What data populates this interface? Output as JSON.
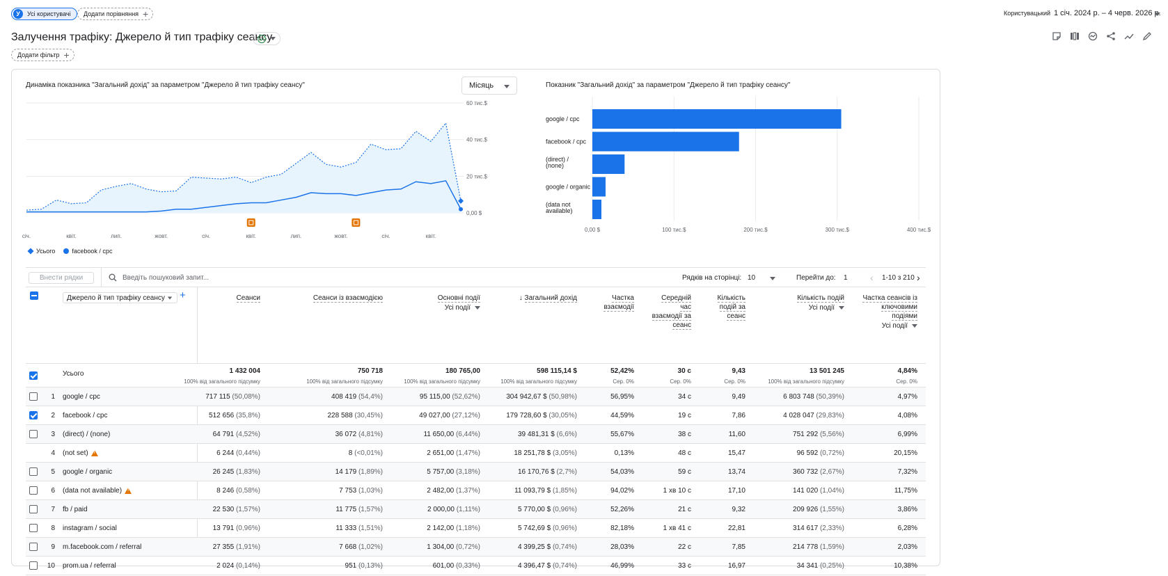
{
  "colors": {
    "accent": "#1a73e8",
    "area": "#e8f4fd",
    "annotation": "#e37400",
    "ok": "#188038"
  },
  "segment": {
    "avatar_letter": "У",
    "label": "Усі користувачі"
  },
  "compare": {
    "label": "Додати порівняння"
  },
  "date": {
    "label": "Користувацький",
    "range": "1 січ. 2024 р. – 4 черв. 2026 р."
  },
  "page_title": "Залучення трафіку: Джерело й тип трафіку сеансу",
  "filter": {
    "label": "Додати фільтр"
  },
  "toolbar_icons": [
    "note-icon",
    "compare-columns-icon",
    "insights-icon",
    "share-icon",
    "trend-icon",
    "edit-icon"
  ],
  "line_chart": {
    "title": "Динаміка показника \"Загальний дохід\" за параметром \"Джерело й тип трафіку сеансу\"",
    "granularity": "Місяць",
    "y_ticks": [
      "60 тис.$",
      "40 тис.$",
      "20 тис.$",
      "0,00 $"
    ],
    "x_ticks": [
      "січ.",
      "квіт.",
      "лип.",
      "жовт.",
      "січ.",
      "квіт.",
      "лип.",
      "жовт.",
      "січ.",
      "квіт."
    ],
    "legend": {
      "total": "Усього",
      "series": "facebook / cpc"
    }
  },
  "chart_data": [
    {
      "type": "line",
      "x": [
        "2024-01",
        "2024-02",
        "2024-03",
        "2024-04",
        "2024-05",
        "2024-06",
        "2024-07",
        "2024-08",
        "2024-09",
        "2024-10",
        "2024-11",
        "2024-12",
        "2025-01",
        "2025-02",
        "2025-03",
        "2025-04",
        "2025-05",
        "2025-06",
        "2025-07",
        "2025-08",
        "2025-09",
        "2025-10",
        "2025-11",
        "2025-12",
        "2026-01",
        "2026-02",
        "2026-03",
        "2026-04",
        "2026-05",
        "2026-06"
      ],
      "series": [
        {
          "name": "Усього",
          "values": [
            1500,
            2000,
            7000,
            5000,
            5500,
            12500,
            14500,
            16000,
            13000,
            11500,
            12000,
            19500,
            19000,
            18500,
            19500,
            16500,
            19500,
            21000,
            27000,
            33000,
            26500,
            25000,
            27500,
            37500,
            34500,
            35000,
            44500,
            39000,
            49000,
            6500
          ]
        },
        {
          "name": "facebook / cpc",
          "values": [
            500,
            500,
            500,
            500,
            500,
            500,
            500,
            500,
            500,
            1000,
            2000,
            2000,
            3000,
            4000,
            5000,
            5500,
            5500,
            7000,
            8500,
            11000,
            10500,
            10500,
            9500,
            11000,
            12500,
            13000,
            17000,
            16000,
            17500,
            2000
          ]
        }
      ],
      "ylim": [
        0,
        60000
      ],
      "y_ticks": [
        "60 тис.$",
        "40 тис.$",
        "20 тис.$",
        "0,00 $"
      ],
      "x_ticks": [
        "січ.",
        "квіт.",
        "лип.",
        "жовт.",
        "січ.",
        "квіт.",
        "лип.",
        "жовт.",
        "січ.",
        "квіт."
      ],
      "annotations": [
        "2025-04",
        "2025-11"
      ],
      "grid": true,
      "legend": "bottom-left"
    },
    {
      "type": "bar",
      "title": "Показник \"Загальний дохід\" за параметром \"Джерело й тип трафіку сеансу\"",
      "categories": [
        "google / cpc",
        "facebook / cpc",
        "(direct) / (none)",
        "google / organic",
        "(data not available)"
      ],
      "values": [
        304942.67,
        179728.6,
        39481.31,
        16170.76,
        11093.79
      ],
      "xlim": [
        0,
        400000
      ],
      "x_ticks": [
        "0,00 $",
        "100 тис.$",
        "200 тис.$",
        "300 тис.$",
        "400 тис.$"
      ],
      "grid": true
    }
  ],
  "bar_chart": {
    "title": "Показник \"Загальний дохід\" за параметром \"Джерело й тип трафіку сеансу\""
  },
  "table": {
    "insert_rows": "Внести рядки",
    "search_placeholder": "Введіть пошуковий запит...",
    "rows_per_page_label": "Рядків на сторінці:",
    "rows_per_page": "10",
    "goto_label": "Перейти до:",
    "goto_value": "1",
    "range": "1-10 з 210",
    "dimension": "Джерело й тип трафіку сеансу",
    "columns": [
      {
        "label": "Сеанси"
      },
      {
        "label": "Сеанси із взаємодією"
      },
      {
        "label": "Основні події",
        "sub": "Усі події"
      },
      {
        "label": "Загальний дохід",
        "sorted": "desc"
      },
      {
        "label": "Частка взаємодії"
      },
      {
        "label": "Середній час взаємодії за сеанс"
      },
      {
        "label": "Кількість подій за сеанс"
      },
      {
        "label": "Кількість подій",
        "sub": "Усі події"
      },
      {
        "label": "Частка сеансів із ключовими подіями",
        "sub": "Усі події"
      }
    ],
    "totals_label": "Усього",
    "totals": [
      {
        "v": "1 432 004",
        "p": "100% від загального підсумку"
      },
      {
        "v": "750 718",
        "p": "100% від загального підсумку"
      },
      {
        "v": "180 765,00",
        "p": "100% від загального підсумку"
      },
      {
        "v": "598 115,14 $",
        "p": "100% від загального підсумку"
      },
      {
        "v": "52,42%",
        "p": "Сер. 0%"
      },
      {
        "v": "30 с",
        "p": "Сер. 0%"
      },
      {
        "v": "9,43",
        "p": "Сер. 0%"
      },
      {
        "v": "13 501 245",
        "p": "100% від загального підсумку"
      },
      {
        "v": "4,84%",
        "p": "Сер. 0%"
      }
    ],
    "rows": [
      {
        "idx": "1",
        "dim": "google / cpc",
        "checked": false,
        "c": [
          [
            "717 115",
            "(50,08%)"
          ],
          [
            "408 419",
            "(54,4%)"
          ],
          [
            "95 115,00",
            "(52,62%)"
          ],
          [
            "304 942,67 $",
            "(50,98%)"
          ],
          [
            "56,95%",
            ""
          ],
          [
            "34 с",
            ""
          ],
          [
            "9,49",
            ""
          ],
          [
            "6 803 748",
            "(50,39%)"
          ],
          [
            "4,97%",
            ""
          ]
        ]
      },
      {
        "idx": "2",
        "dim": "facebook / cpc",
        "checked": true,
        "c": [
          [
            "512 656",
            "(35,8%)"
          ],
          [
            "228 588",
            "(30,45%)"
          ],
          [
            "49 027,00",
            "(27,12%)"
          ],
          [
            "179 728,60 $",
            "(30,05%)"
          ],
          [
            "44,59%",
            ""
          ],
          [
            "19 с",
            ""
          ],
          [
            "7,86",
            ""
          ],
          [
            "4 028 047",
            "(29,83%)"
          ],
          [
            "4,08%",
            ""
          ]
        ]
      },
      {
        "idx": "3",
        "dim": "(direct) / (none)",
        "checked": false,
        "c": [
          [
            "64 791",
            "(4,52%)"
          ],
          [
            "36 072",
            "(4,81%)"
          ],
          [
            "11 650,00",
            "(6,44%)"
          ],
          [
            "39 481,31 $",
            "(6,6%)"
          ],
          [
            "55,67%",
            ""
          ],
          [
            "38 с",
            ""
          ],
          [
            "11,60",
            ""
          ],
          [
            "751 292",
            "(5,56%)"
          ],
          [
            "6,99%",
            ""
          ]
        ]
      },
      {
        "idx": "4",
        "dim": "(not set)",
        "nocheck": true,
        "warn": true,
        "c": [
          [
            "6 244",
            "(0,44%)"
          ],
          [
            "8",
            "(<0,01%)"
          ],
          [
            "2 651,00",
            "(1,47%)"
          ],
          [
            "18 251,78 $",
            "(3,05%)"
          ],
          [
            "0,13%",
            ""
          ],
          [
            "48 с",
            ""
          ],
          [
            "15,47",
            ""
          ],
          [
            "96 592",
            "(0,72%)"
          ],
          [
            "20,15%",
            ""
          ]
        ]
      },
      {
        "idx": "5",
        "dim": "google / organic",
        "checked": false,
        "c": [
          [
            "26 245",
            "(1,83%)"
          ],
          [
            "14 179",
            "(1,89%)"
          ],
          [
            "5 757,00",
            "(3,18%)"
          ],
          [
            "16 170,76 $",
            "(2,7%)"
          ],
          [
            "54,03%",
            ""
          ],
          [
            "59 с",
            ""
          ],
          [
            "13,74",
            ""
          ],
          [
            "360 732",
            "(2,67%)"
          ],
          [
            "7,32%",
            ""
          ]
        ]
      },
      {
        "idx": "6",
        "dim": "(data not available)",
        "checked": false,
        "warn": true,
        "c": [
          [
            "8 246",
            "(0,58%)"
          ],
          [
            "7 753",
            "(1,03%)"
          ],
          [
            "2 482,00",
            "(1,37%)"
          ],
          [
            "11 093,79 $",
            "(1,85%)"
          ],
          [
            "94,02%",
            ""
          ],
          [
            "1 хв 10 с",
            ""
          ],
          [
            "17,10",
            ""
          ],
          [
            "141 020",
            "(1,04%)"
          ],
          [
            "11,75%",
            ""
          ]
        ]
      },
      {
        "idx": "7",
        "dim": "fb / paid",
        "checked": false,
        "c": [
          [
            "22 530",
            "(1,57%)"
          ],
          [
            "11 775",
            "(1,57%)"
          ],
          [
            "2 000,00",
            "(1,11%)"
          ],
          [
            "5 770,00 $",
            "(0,96%)"
          ],
          [
            "52,26%",
            ""
          ],
          [
            "21 с",
            ""
          ],
          [
            "9,32",
            ""
          ],
          [
            "209 926",
            "(1,55%)"
          ],
          [
            "3,86%",
            ""
          ]
        ]
      },
      {
        "idx": "8",
        "dim": "instagram / social",
        "checked": false,
        "c": [
          [
            "13 791",
            "(0,96%)"
          ],
          [
            "11 333",
            "(1,51%)"
          ],
          [
            "2 142,00",
            "(1,18%)"
          ],
          [
            "5 742,69 $",
            "(0,96%)"
          ],
          [
            "82,18%",
            ""
          ],
          [
            "1 хв 41 с",
            ""
          ],
          [
            "22,81",
            ""
          ],
          [
            "314 617",
            "(2,33%)"
          ],
          [
            "6,28%",
            ""
          ]
        ]
      },
      {
        "idx": "9",
        "dim": "m.facebook.com / referral",
        "checked": false,
        "c": [
          [
            "27 355",
            "(1,91%)"
          ],
          [
            "7 668",
            "(1,02%)"
          ],
          [
            "1 304,00",
            "(0,72%)"
          ],
          [
            "4 399,25 $",
            "(0,74%)"
          ],
          [
            "28,03%",
            ""
          ],
          [
            "22 с",
            ""
          ],
          [
            "7,85",
            ""
          ],
          [
            "214 778",
            "(1,59%)"
          ],
          [
            "2,03%",
            ""
          ]
        ]
      },
      {
        "idx": "10",
        "dim": "prom.ua / referral",
        "checked": false,
        "c": [
          [
            "2 024",
            "(0,14%)"
          ],
          [
            "951",
            "(0,13%)"
          ],
          [
            "601,00",
            "(0,33%)"
          ],
          [
            "4 396,47 $",
            "(0,74%)"
          ],
          [
            "46,99%",
            ""
          ],
          [
            "33 с",
            ""
          ],
          [
            "16,97",
            ""
          ],
          [
            "34 341",
            "(0,25%)"
          ],
          [
            "10,38%",
            ""
          ]
        ]
      }
    ]
  }
}
